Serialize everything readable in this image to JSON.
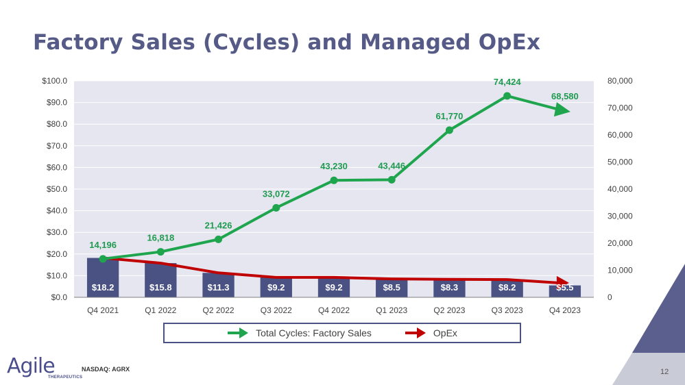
{
  "title": "Factory Sales (Cycles) and Managed OpEx",
  "chart_data": {
    "type": "bar+line",
    "categories": [
      "Q4 2021",
      "Q1 2022",
      "Q2 2022",
      "Q3 2022",
      "Q4 2022",
      "Q1 2023",
      "Q2 2023",
      "Q3 2023",
      "Q4 2023"
    ],
    "bars": {
      "name": "OpEx ($M)",
      "values": [
        18.2,
        15.8,
        11.3,
        9.2,
        9.2,
        8.5,
        8.3,
        8.2,
        5.5
      ],
      "labels": [
        "$18.2",
        "$15.8",
        "$11.3",
        "$9.2",
        "$9.2",
        "$8.5",
        "$8.3",
        "$8.2",
        "$5.5"
      ],
      "color": "#4A5284"
    },
    "series": [
      {
        "name": "Total Cycles: Factory Sales",
        "axis": "right",
        "values": [
          14196,
          16818,
          21426,
          33072,
          43230,
          43446,
          61770,
          74424,
          68580
        ],
        "labels": [
          "14,196",
          "16,818",
          "21,426",
          "33,072",
          "43,230",
          "43,446",
          "61,770",
          "74,424",
          "68,580"
        ],
        "color": "#1EA54E"
      },
      {
        "name": "OpEx",
        "axis": "left",
        "values": [
          18.2,
          15.8,
          11.3,
          9.2,
          9.2,
          8.5,
          8.3,
          8.2,
          5.5
        ],
        "color": "#C00000"
      }
    ],
    "y_left": {
      "min": 0,
      "max": 100,
      "step": 10,
      "ticks": [
        "$0.0",
        "$10.0",
        "$20.0",
        "$30.0",
        "$40.0",
        "$50.0",
        "$60.0",
        "$70.0",
        "$80.0",
        "$90.0",
        "$100.0"
      ]
    },
    "y_right": {
      "min": 0,
      "max": 80000,
      "step": 10000,
      "ticks": [
        "0",
        "10,000",
        "20,000",
        "30,000",
        "40,000",
        "50,000",
        "60,000",
        "70,000",
        "80,000"
      ]
    },
    "legend": {
      "position": "bottom",
      "items": [
        {
          "label": "Total Cycles: Factory Sales",
          "color": "#1EA54E"
        },
        {
          "label": "OpEx",
          "color": "#C00000"
        }
      ]
    },
    "plot_background": "#E6E6F0",
    "grid": true
  },
  "footer": {
    "logo_text": "Agile",
    "logo_subtext": "THERAPEUTICS",
    "ticker": "NASDAQ: AGRX",
    "page_number": "12"
  }
}
